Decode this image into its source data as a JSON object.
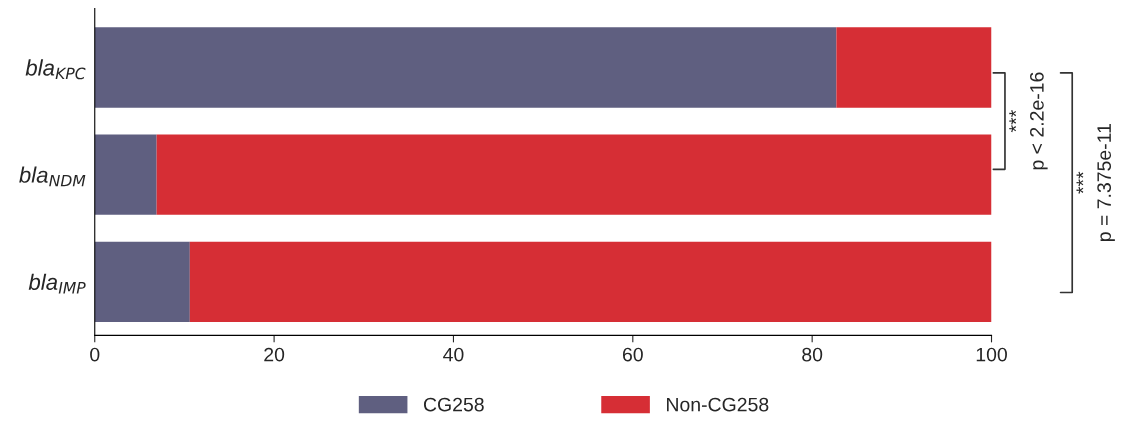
{
  "chart_data": {
    "type": "bar",
    "orientation": "horizontal",
    "stacked": true,
    "categories": [
      "bla$_{KPC}$",
      "bla$_{NDM}$",
      "bla$_{IMP}$"
    ],
    "series": [
      {
        "name": "CG258",
        "color": "#5f5f80",
        "values": [
          82.7,
          6.9,
          10.6
        ]
      },
      {
        "name": "Non-CG258",
        "color": "#d62e35",
        "values": [
          17.3,
          93.1,
          89.4
        ]
      }
    ],
    "xlim": [
      0,
      100
    ],
    "xticks": [
      0,
      20,
      40,
      60,
      80,
      100
    ],
    "annotations": [
      "***\np < 2.2e-16",
      "***\np = 7.375e-11"
    ],
    "legend": "bottom",
    "grid": false
  }
}
